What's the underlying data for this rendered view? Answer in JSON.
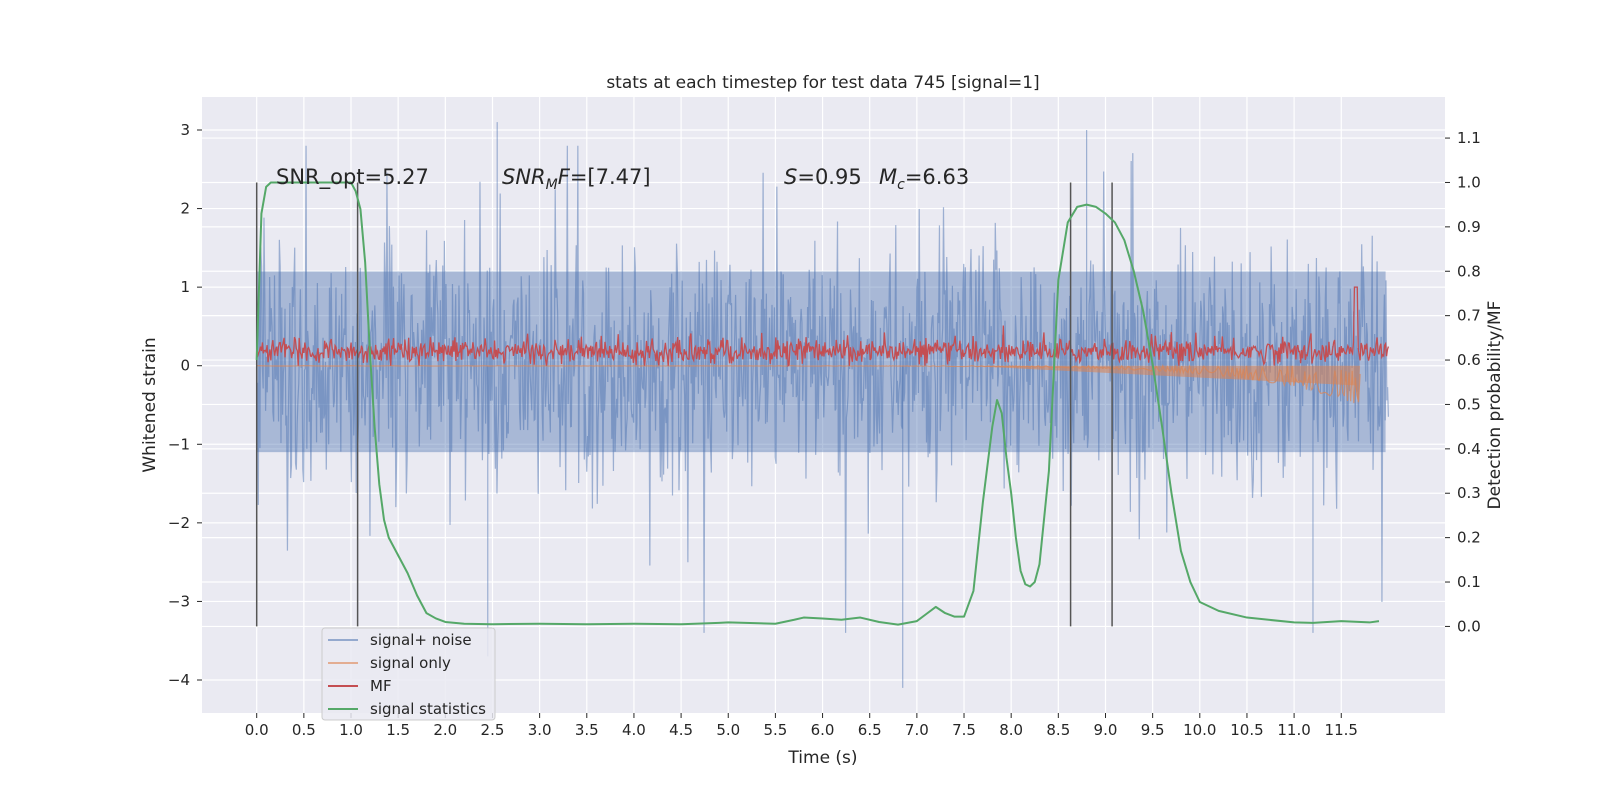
{
  "chart_data": {
    "type": "line",
    "title": "stats at each timestep for test data 745 [signal=1]",
    "xlabel": "Time (s)",
    "ylabel": "Whitened strain",
    "y2label": "Detection probability/MF",
    "xlim": [
      -0.58,
      12.6
    ],
    "ylim": [
      -4.42,
      3.42
    ],
    "y2lim": [
      -0.195,
      1.1925
    ],
    "x_ticks": [
      0.0,
      0.5,
      1.0,
      1.5,
      2.0,
      2.5,
      3.0,
      3.5,
      4.0,
      4.5,
      5.0,
      5.5,
      6.0,
      6.5,
      7.0,
      7.5,
      8.0,
      8.5,
      9.0,
      9.5,
      10.0,
      10.5,
      11.0,
      11.5
    ],
    "x_tick_labels": [
      "0.0",
      "0.5",
      "1.0",
      "1.5",
      "2.0",
      "2.5",
      "3.0",
      "3.5",
      "4.0",
      "4.5",
      "5.0",
      "5.5",
      "6.0",
      "6.5",
      "7.0",
      "7.5",
      "8.0",
      "8.5",
      "9.0",
      "9.5",
      "10.0",
      "10.5",
      "11.0",
      "11.5"
    ],
    "y_ticks": [
      3,
      2,
      1,
      0,
      -1,
      -2,
      -3,
      -4
    ],
    "y_tick_labels": [
      "3",
      "2",
      "1",
      "0",
      "−1",
      "−2",
      "−3",
      "−4"
    ],
    "y2_ticks": [
      1.1,
      1.0,
      0.9,
      0.8,
      0.7,
      0.6,
      0.5,
      0.4,
      0.3,
      0.2,
      0.1,
      0.0
    ],
    "y2_tick_labels": [
      "1.1",
      "1.0",
      "0.9",
      "0.8",
      "0.7",
      "0.6",
      "0.5",
      "0.4",
      "0.3",
      "0.2",
      "0.1",
      "0.0"
    ],
    "grid": true,
    "legend_position": "lower-left",
    "series": [
      {
        "name": "signal+ noise",
        "axis": "left",
        "color": "#4c72b0",
        "x_range": [
          0.0,
          12.0
        ],
        "typical_range": [
          -1.5,
          1.5
        ],
        "max": 3.1,
        "min": -4.1
      },
      {
        "name": "signal only",
        "axis": "left",
        "color": "#dd8452",
        "x_range": [
          0.0,
          11.7
        ],
        "max": 0.0,
        "min": -0.5
      },
      {
        "name": "MF",
        "axis": "left",
        "color": "#c44e52",
        "x_range": [
          0.0,
          12.0
        ],
        "typical_range": [
          0.05,
          0.35
        ],
        "max": 1.0,
        "min": 0.0
      },
      {
        "name": "signal statistics",
        "axis": "right",
        "color": "#55a868",
        "x": [
          0.0,
          0.05,
          0.1,
          0.15,
          0.2,
          0.3,
          0.5,
          0.7,
          0.9,
          1.0,
          1.05,
          1.1,
          1.15,
          1.2,
          1.25,
          1.3,
          1.35,
          1.4,
          1.5,
          1.6,
          1.7,
          1.8,
          1.9,
          2.0,
          2.2,
          2.5,
          3.0,
          3.5,
          4.0,
          4.5,
          4.9,
          5.0,
          5.5,
          5.7,
          5.8,
          6.0,
          6.2,
          6.4,
          6.6,
          6.8,
          7.0,
          7.1,
          7.2,
          7.3,
          7.4,
          7.5,
          7.6,
          7.7,
          7.8,
          7.85,
          7.9,
          7.95,
          8.0,
          8.05,
          8.1,
          8.15,
          8.2,
          8.25,
          8.3,
          8.4,
          8.5,
          8.6,
          8.7,
          8.8,
          8.9,
          9.0,
          9.1,
          9.2,
          9.3,
          9.4,
          9.5,
          9.6,
          9.7,
          9.8,
          9.9,
          10.0,
          10.2,
          10.5,
          11.0,
          11.2,
          11.5,
          11.8,
          11.9
        ],
        "y": [
          0.6,
          0.93,
          0.99,
          1.0,
          1.0,
          1.0,
          1.0,
          1.0,
          1.0,
          1.0,
          0.98,
          0.94,
          0.82,
          0.62,
          0.45,
          0.32,
          0.24,
          0.2,
          0.16,
          0.12,
          0.07,
          0.03,
          0.018,
          0.01,
          0.006,
          0.005,
          0.006,
          0.005,
          0.006,
          0.005,
          0.008,
          0.009,
          0.006,
          0.015,
          0.02,
          0.018,
          0.015,
          0.02,
          0.01,
          0.004,
          0.012,
          0.028,
          0.044,
          0.03,
          0.022,
          0.022,
          0.08,
          0.28,
          0.45,
          0.51,
          0.48,
          0.38,
          0.3,
          0.2,
          0.125,
          0.095,
          0.09,
          0.1,
          0.14,
          0.35,
          0.78,
          0.91,
          0.945,
          0.95,
          0.945,
          0.93,
          0.91,
          0.87,
          0.8,
          0.71,
          0.59,
          0.45,
          0.3,
          0.17,
          0.1,
          0.055,
          0.035,
          0.02,
          0.009,
          0.008,
          0.012,
          0.009,
          0.012
        ]
      }
    ],
    "vertical_markers": [
      0.0,
      1.07,
      8.63,
      9.07
    ],
    "annotations": [
      "SNR_opt=5.27",
      "SNR_MF=[7.47]",
      "S=0.95",
      "M_c=6.63"
    ]
  },
  "annotations": {
    "snr_opt": "SNR_opt=5.27",
    "snr_mf": "=[7.47]",
    "s": "=0.95",
    "mc": "=6.63"
  },
  "colors": {
    "axes_bg": "#eaeaf2",
    "grid": "#ffffff",
    "noise": "#4c72b0",
    "signal": "#dd8452",
    "mf": "#c44e52",
    "stat": "#55a868",
    "marker": "#555555"
  }
}
